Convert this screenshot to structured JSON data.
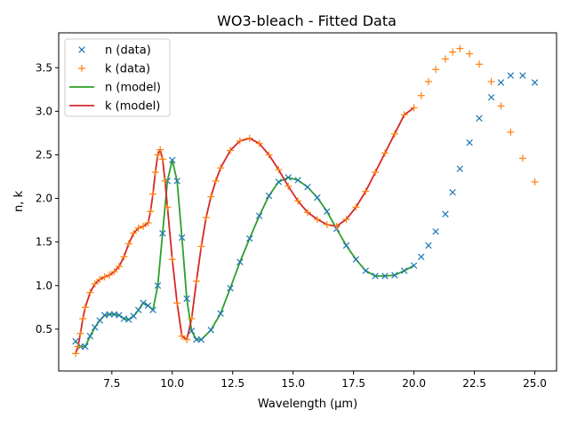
{
  "chart_data": {
    "type": "line",
    "title": "WO3-bleach - Fitted Data",
    "xlabel": "Wavelength (μm)",
    "ylabel": "n, k",
    "xlim": [
      5.3,
      25.9
    ],
    "ylim": [
      0.02,
      3.9
    ],
    "x_ticks": [
      7.5,
      10.0,
      12.5,
      15.0,
      17.5,
      20.0,
      22.5,
      25.0
    ],
    "x_tick_labels": [
      "7.5",
      "10.0",
      "12.5",
      "15.0",
      "17.5",
      "20.0",
      "22.5",
      "25.0"
    ],
    "y_ticks": [
      0.5,
      1.0,
      1.5,
      2.0,
      2.5,
      3.0,
      3.5
    ],
    "y_tick_labels": [
      "0.5",
      "1.0",
      "1.5",
      "2.0",
      "2.5",
      "3.0",
      "3.5"
    ],
    "legend_position": "upper-left",
    "series": [
      {
        "name": "n (data)",
        "kind": "marker-x",
        "color": "#1f77b4",
        "x": [
          6.0,
          6.2,
          6.4,
          6.6,
          6.8,
          7.0,
          7.2,
          7.4,
          7.6,
          7.8,
          8.0,
          8.2,
          8.4,
          8.6,
          8.8,
          9.0,
          9.2,
          9.4,
          9.6,
          9.8,
          10.0,
          10.2,
          10.4,
          10.6,
          10.8,
          11.0,
          11.2,
          11.6,
          12.0,
          12.4,
          12.8,
          13.2,
          13.6,
          14.0,
          14.4,
          14.8,
          15.2,
          15.6,
          16.0,
          16.4,
          16.8,
          17.2,
          17.6,
          18.0,
          18.4,
          18.8,
          19.2,
          19.6,
          20.0,
          20.3,
          20.6,
          20.9,
          21.3,
          21.6,
          21.9,
          22.3,
          22.7,
          23.2,
          23.6,
          24.0,
          24.5,
          25.0
        ],
        "y": [
          0.36,
          0.3,
          0.3,
          0.42,
          0.52,
          0.6,
          0.66,
          0.67,
          0.67,
          0.66,
          0.62,
          0.61,
          0.65,
          0.72,
          0.8,
          0.77,
          0.72,
          1.0,
          1.6,
          2.2,
          2.44,
          2.2,
          1.55,
          0.85,
          0.48,
          0.38,
          0.38,
          0.49,
          0.68,
          0.97,
          1.27,
          1.54,
          1.8,
          2.03,
          2.19,
          2.24,
          2.21,
          2.13,
          2.01,
          1.85,
          1.65,
          1.46,
          1.3,
          1.17,
          1.11,
          1.11,
          1.12,
          1.17,
          1.23,
          1.33,
          1.46,
          1.62,
          1.82,
          2.07,
          2.34,
          2.64,
          2.92,
          3.16,
          3.33,
          3.41,
          3.41,
          3.33
        ]
      },
      {
        "name": "k (data)",
        "kind": "marker-plus",
        "color": "#ff7f0e",
        "x": [
          6.0,
          6.1,
          6.2,
          6.3,
          6.4,
          6.6,
          6.8,
          7.0,
          7.2,
          7.4,
          7.6,
          7.8,
          8.0,
          8.2,
          8.4,
          8.6,
          8.8,
          9.0,
          9.1,
          9.2,
          9.3,
          9.4,
          9.5,
          9.6,
          9.7,
          9.8,
          10.0,
          10.2,
          10.4,
          10.6,
          10.8,
          11.0,
          11.2,
          11.4,
          11.6,
          11.8,
          12.0,
          12.4,
          12.8,
          13.2,
          13.6,
          14.0,
          14.4,
          14.8,
          15.2,
          15.6,
          16.0,
          16.4,
          16.8,
          17.2,
          17.6,
          18.0,
          18.4,
          18.8,
          19.2,
          19.6,
          20.0,
          20.3,
          20.6,
          20.9,
          21.3,
          21.6,
          21.9,
          22.3,
          22.7,
          23.2,
          23.6,
          24.0,
          24.5,
          25.0
        ],
        "y": [
          0.22,
          0.3,
          0.45,
          0.62,
          0.75,
          0.92,
          1.02,
          1.07,
          1.1,
          1.12,
          1.16,
          1.22,
          1.33,
          1.48,
          1.6,
          1.66,
          1.68,
          1.72,
          1.85,
          2.05,
          2.3,
          2.5,
          2.56,
          2.45,
          2.2,
          1.9,
          1.3,
          0.8,
          0.42,
          0.38,
          0.62,
          1.05,
          1.45,
          1.78,
          2.02,
          2.2,
          2.35,
          2.55,
          2.66,
          2.69,
          2.63,
          2.5,
          2.33,
          2.14,
          1.97,
          1.84,
          1.76,
          1.7,
          1.68,
          1.76,
          1.9,
          2.08,
          2.3,
          2.52,
          2.74,
          2.96,
          3.04,
          3.18,
          3.34,
          3.48,
          3.6,
          3.68,
          3.72,
          3.66,
          3.54,
          3.34,
          3.06,
          2.76,
          2.46,
          2.19
        ]
      },
      {
        "name": "n (model)",
        "kind": "line",
        "color": "#2ca02c",
        "x": [
          6.0,
          6.2,
          6.4,
          6.6,
          6.8,
          7.0,
          7.2,
          7.4,
          7.6,
          7.8,
          8.0,
          8.2,
          8.4,
          8.6,
          8.8,
          9.0,
          9.2,
          9.4,
          9.6,
          9.8,
          10.0,
          10.2,
          10.4,
          10.6,
          10.8,
          11.0,
          11.2,
          11.6,
          12.0,
          12.4,
          12.8,
          13.2,
          13.6,
          14.0,
          14.4,
          14.8,
          15.2,
          15.6,
          16.0,
          16.4,
          16.8,
          17.2,
          17.6,
          18.0,
          18.4,
          18.8,
          19.2,
          19.6,
          20.0
        ],
        "y": [
          0.36,
          0.3,
          0.3,
          0.42,
          0.52,
          0.6,
          0.66,
          0.67,
          0.67,
          0.66,
          0.62,
          0.61,
          0.65,
          0.72,
          0.8,
          0.77,
          0.72,
          1.0,
          1.6,
          2.2,
          2.44,
          2.2,
          1.55,
          0.85,
          0.48,
          0.38,
          0.38,
          0.49,
          0.68,
          0.97,
          1.27,
          1.54,
          1.8,
          2.03,
          2.19,
          2.24,
          2.21,
          2.13,
          2.01,
          1.85,
          1.65,
          1.46,
          1.3,
          1.17,
          1.11,
          1.11,
          1.12,
          1.17,
          1.23
        ]
      },
      {
        "name": "k (model)",
        "kind": "line",
        "color": "#d62728",
        "x": [
          6.0,
          6.1,
          6.2,
          6.3,
          6.4,
          6.6,
          6.8,
          7.0,
          7.2,
          7.4,
          7.6,
          7.8,
          8.0,
          8.2,
          8.4,
          8.6,
          8.8,
          9.0,
          9.1,
          9.2,
          9.3,
          9.4,
          9.5,
          9.6,
          9.7,
          9.8,
          10.0,
          10.2,
          10.4,
          10.6,
          10.8,
          11.0,
          11.2,
          11.4,
          11.6,
          11.8,
          12.0,
          12.4,
          12.8,
          13.2,
          13.6,
          14.0,
          14.4,
          14.8,
          15.2,
          15.6,
          16.0,
          16.4,
          16.8,
          17.2,
          17.6,
          18.0,
          18.4,
          18.8,
          19.2,
          19.6,
          20.0
        ],
        "y": [
          0.22,
          0.3,
          0.45,
          0.62,
          0.75,
          0.92,
          1.02,
          1.07,
          1.1,
          1.12,
          1.16,
          1.22,
          1.33,
          1.48,
          1.6,
          1.66,
          1.68,
          1.72,
          1.85,
          2.05,
          2.3,
          2.5,
          2.56,
          2.45,
          2.2,
          1.9,
          1.3,
          0.8,
          0.42,
          0.38,
          0.62,
          1.05,
          1.45,
          1.78,
          2.02,
          2.2,
          2.35,
          2.55,
          2.66,
          2.69,
          2.63,
          2.5,
          2.33,
          2.14,
          1.97,
          1.84,
          1.76,
          1.7,
          1.68,
          1.76,
          1.9,
          2.08,
          2.3,
          2.52,
          2.74,
          2.96,
          3.04
        ]
      }
    ]
  }
}
